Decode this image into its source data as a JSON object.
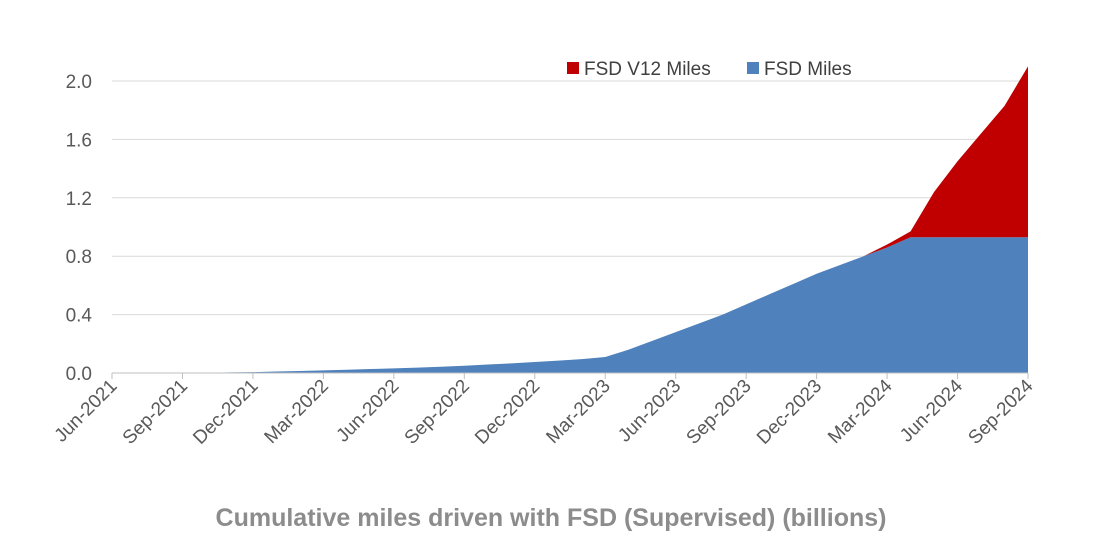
{
  "chart_data": {
    "type": "area",
    "stacked": true,
    "title": "Cumulative miles driven with FSD (Supervised) (billions)",
    "xlabel": "",
    "ylabel": "",
    "ylim": [
      0,
      2.0
    ],
    "yticks": [
      0.0,
      0.4,
      0.8,
      1.2,
      1.6,
      2.0
    ],
    "ytick_labels": [
      "0.0",
      "0.4",
      "0.8",
      "1.2",
      "1.6",
      "2.0"
    ],
    "x_tick_labels": [
      "Jun-2021",
      "Sep-2021",
      "Dec-2021",
      "Mar-2022",
      "Jun-2022",
      "Sep-2022",
      "Dec-2022",
      "Mar-2023",
      "Jun-2023",
      "Sep-2023",
      "Dec-2023",
      "Mar-2024",
      "Jun-2024",
      "Sep-2024"
    ],
    "grid": true,
    "legend_position": "top-right",
    "x": [
      "Jun-2021",
      "Jul-2021",
      "Aug-2021",
      "Sep-2021",
      "Oct-2021",
      "Nov-2021",
      "Dec-2021",
      "Jan-2022",
      "Feb-2022",
      "Mar-2022",
      "Apr-2022",
      "May-2022",
      "Jun-2022",
      "Jul-2022",
      "Aug-2022",
      "Sep-2022",
      "Oct-2022",
      "Nov-2022",
      "Dec-2022",
      "Jan-2023",
      "Feb-2023",
      "Mar-2023",
      "Apr-2023",
      "May-2023",
      "Jun-2023",
      "Jul-2023",
      "Aug-2023",
      "Sep-2023",
      "Oct-2023",
      "Nov-2023",
      "Dec-2023",
      "Jan-2024",
      "Feb-2024",
      "Mar-2024",
      "Apr-2024",
      "May-2024",
      "Jun-2024",
      "Jul-2024",
      "Aug-2024",
      "Sep-2024"
    ],
    "series": [
      {
        "name": "FSD Miles",
        "color": "#4f81bd",
        "values": [
          0.0,
          0.0,
          0.0,
          0.0,
          0.002,
          0.004,
          0.006,
          0.01,
          0.014,
          0.018,
          0.022,
          0.027,
          0.032,
          0.037,
          0.043,
          0.05,
          0.058,
          0.066,
          0.075,
          0.085,
          0.095,
          0.11,
          0.16,
          0.22,
          0.28,
          0.34,
          0.4,
          0.47,
          0.54,
          0.61,
          0.68,
          0.74,
          0.8,
          0.86,
          0.93,
          0.93,
          0.93,
          0.93,
          0.93,
          0.93
        ]
      },
      {
        "name": "FSD V12 Miles",
        "color": "#c00000",
        "values": [
          0,
          0,
          0,
          0,
          0,
          0,
          0,
          0,
          0,
          0,
          0,
          0,
          0,
          0,
          0,
          0,
          0,
          0,
          0,
          0,
          0,
          0,
          0,
          0,
          0,
          0,
          0,
          0,
          0,
          0,
          0,
          0,
          0,
          0.02,
          0.04,
          0.31,
          0.52,
          0.71,
          0.9,
          1.17
        ]
      }
    ]
  }
}
